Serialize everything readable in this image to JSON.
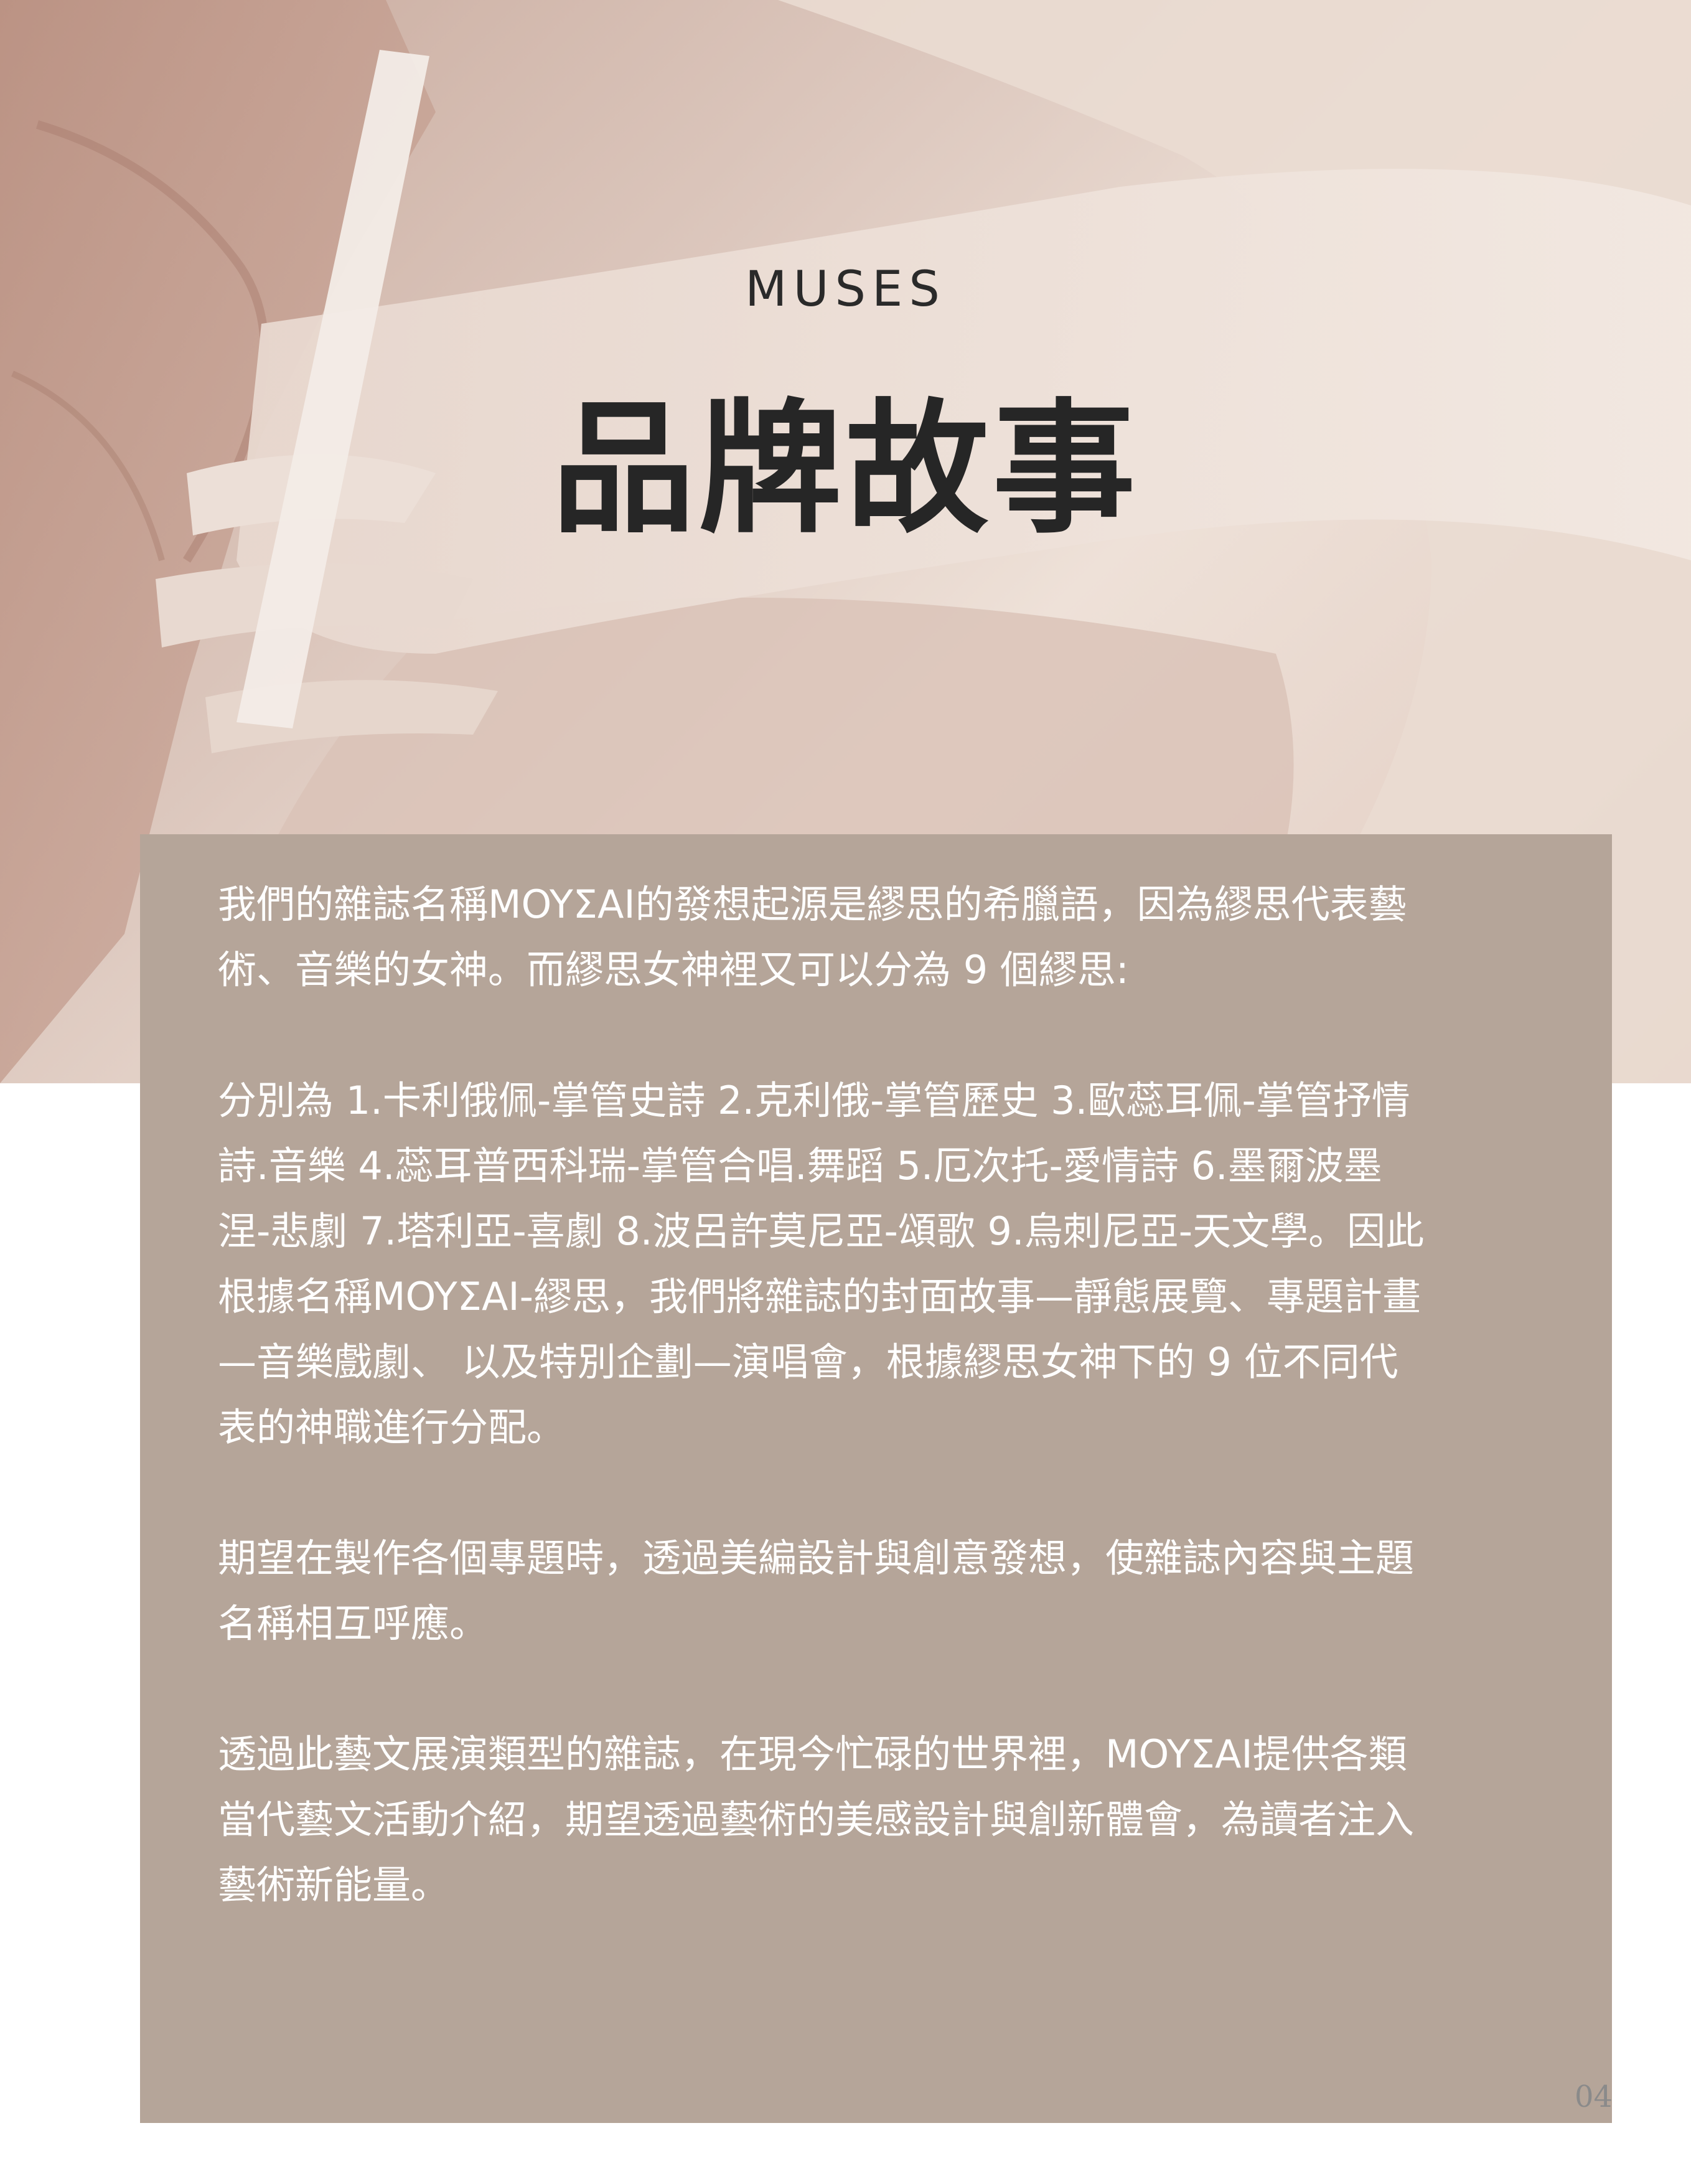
{
  "header": {
    "brand": "MUSES",
    "title": "品牌故事"
  },
  "body": {
    "paragraphs": [
      "我們的雜誌名稱MOYΣAI的發想起源是繆思的希臘語，因為繆思代表藝術、音樂的女神。而繆思女神裡又可以分為 9 個繆思:",
      "分別為 1.卡利俄佩-掌管史詩 2.克利俄-掌管歷史 3.歐蕊耳佩-掌管抒情詩.音樂 4.蕊耳普西科瑞-掌管合唱.舞蹈 5.厄次托-愛情詩 6.墨爾波墨涅-悲劇 7.塔利亞-喜劇 8.波呂許莫尼亞-頌歌 9.烏刺尼亞-天文學。因此根據名稱MOYΣAI-繆思，我們將雜誌的封面故事—靜態展覽、專題計畫—音樂戲劇、 以及特別企劃—演唱會，根據繆思女神下的 9 位不同代表的神職進行分配。",
      "期望在製作各個專題時，透過美編設計與創意發想，使雜誌內容與主題名稱相互呼應。",
      "透過此藝文展演類型的雜誌，在現今忙碌的世界裡，MOYΣAI提供各類當代藝文活動介紹，期望透過藝術的美感設計與創新體會，為讀者注入藝術新能量。"
    ]
  },
  "footer": {
    "page_number": "04"
  },
  "colors": {
    "panel": "#b5a599",
    "title": "#262626",
    "body_text": "#ffffff"
  }
}
